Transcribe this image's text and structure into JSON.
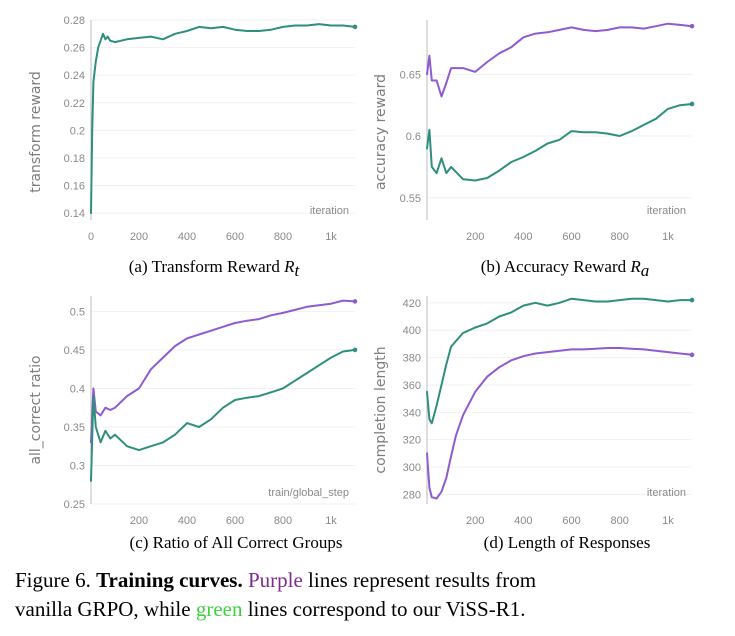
{
  "colors": {
    "purple": "#8e5bd0",
    "green": "#2e8f7f",
    "green_text": "#3fd13f",
    "purple_text": "#7d2a8f"
  },
  "chart_data": [
    {
      "id": "a",
      "type": "line",
      "caption": "(a) Transform Reward ",
      "caption_math": "R",
      "caption_sub": "t",
      "ylabel": "transform reward",
      "xlabel": "iteration",
      "xlim": [
        0,
        1100
      ],
      "ylim": [
        0.135,
        0.28
      ],
      "xticks": [
        0,
        200,
        400,
        600,
        800,
        1000
      ],
      "xtick_labels": [
        "0",
        "200",
        "400",
        "600",
        "800",
        "1k"
      ],
      "yticks": [
        0.14,
        0.16,
        0.18,
        0.2,
        0.22,
        0.24,
        0.26,
        0.28
      ],
      "ytick_labels": [
        "0.14",
        "0.16",
        "0.18",
        "0.2",
        "0.22",
        "0.24",
        "0.26",
        "0.28"
      ],
      "series": [
        {
          "name": "ViSS-R1",
          "color": "green",
          "x": [
            0,
            5,
            10,
            20,
            30,
            40,
            50,
            60,
            70,
            80,
            100,
            150,
            200,
            250,
            300,
            350,
            400,
            450,
            500,
            550,
            600,
            650,
            700,
            750,
            800,
            850,
            900,
            950,
            1000,
            1050,
            1100
          ],
          "y": [
            0.14,
            0.2,
            0.235,
            0.25,
            0.26,
            0.265,
            0.27,
            0.266,
            0.268,
            0.265,
            0.264,
            0.266,
            0.267,
            0.268,
            0.266,
            0.27,
            0.272,
            0.275,
            0.274,
            0.275,
            0.273,
            0.272,
            0.272,
            0.273,
            0.275,
            0.276,
            0.276,
            0.277,
            0.276,
            0.276,
            0.275
          ]
        }
      ]
    },
    {
      "id": "b",
      "type": "line",
      "caption": "(b) Accuracy Reward ",
      "caption_math": "R",
      "caption_sub": "a",
      "ylabel": "accuracy reward",
      "xlabel": "iteration",
      "xlim": [
        0,
        1100
      ],
      "ylim": [
        0.532,
        0.694
      ],
      "xticks": [
        200,
        400,
        600,
        800,
        1000
      ],
      "xtick_labels": [
        "200",
        "400",
        "600",
        "800",
        "1k"
      ],
      "yticks": [
        0.55,
        0.6,
        0.65
      ],
      "ytick_labels": [
        "0.55",
        "0.6",
        "0.65"
      ],
      "series": [
        {
          "name": "vanilla GRPO",
          "color": "purple",
          "x": [
            0,
            10,
            20,
            40,
            60,
            80,
            100,
            150,
            200,
            250,
            300,
            350,
            400,
            450,
            500,
            550,
            600,
            650,
            700,
            750,
            800,
            850,
            900,
            950,
            1000,
            1050,
            1100
          ],
          "y": [
            0.65,
            0.665,
            0.645,
            0.645,
            0.632,
            0.643,
            0.655,
            0.655,
            0.652,
            0.66,
            0.667,
            0.672,
            0.68,
            0.683,
            0.684,
            0.686,
            0.688,
            0.686,
            0.685,
            0.686,
            0.688,
            0.688,
            0.687,
            0.689,
            0.691,
            0.69,
            0.689
          ]
        },
        {
          "name": "ViSS-R1",
          "color": "green",
          "x": [
            0,
            10,
            20,
            40,
            60,
            80,
            100,
            150,
            200,
            250,
            300,
            350,
            400,
            450,
            500,
            550,
            600,
            650,
            700,
            750,
            800,
            850,
            900,
            950,
            1000,
            1050,
            1100
          ],
          "y": [
            0.59,
            0.605,
            0.575,
            0.57,
            0.582,
            0.57,
            0.575,
            0.565,
            0.564,
            0.566,
            0.572,
            0.579,
            0.583,
            0.588,
            0.594,
            0.597,
            0.604,
            0.603,
            0.603,
            0.602,
            0.6,
            0.604,
            0.609,
            0.614,
            0.622,
            0.625,
            0.626
          ]
        }
      ]
    },
    {
      "id": "c",
      "type": "line",
      "caption": "(c) Ratio of All Correct Groups",
      "ylabel": "all_correct ratio",
      "xlabel": "train/global_step",
      "xlim": [
        0,
        1100
      ],
      "ylim": [
        0.25,
        0.52
      ],
      "xticks": [
        200,
        400,
        600,
        800,
        1000
      ],
      "xtick_labels": [
        "200",
        "400",
        "600",
        "800",
        "1k"
      ],
      "yticks": [
        0.25,
        0.3,
        0.35,
        0.4,
        0.45,
        0.5
      ],
      "ytick_labels": [
        "0.25",
        "0.3",
        "0.35",
        "0.4",
        "0.45",
        "0.5"
      ],
      "series": [
        {
          "name": "vanilla GRPO",
          "color": "purple",
          "x": [
            0,
            10,
            20,
            40,
            60,
            80,
            100,
            150,
            200,
            250,
            300,
            350,
            400,
            450,
            500,
            550,
            600,
            650,
            700,
            750,
            800,
            850,
            900,
            950,
            1000,
            1050,
            1100
          ],
          "y": [
            0.33,
            0.4,
            0.37,
            0.365,
            0.375,
            0.372,
            0.375,
            0.39,
            0.4,
            0.425,
            0.44,
            0.455,
            0.465,
            0.47,
            0.475,
            0.48,
            0.485,
            0.488,
            0.49,
            0.495,
            0.498,
            0.502,
            0.506,
            0.508,
            0.51,
            0.514,
            0.513
          ]
        },
        {
          "name": "ViSS-R1",
          "color": "green",
          "x": [
            0,
            10,
            20,
            40,
            60,
            80,
            100,
            150,
            200,
            250,
            300,
            350,
            400,
            450,
            500,
            550,
            600,
            650,
            700,
            750,
            800,
            850,
            900,
            950,
            1000,
            1050,
            1100
          ],
          "y": [
            0.28,
            0.39,
            0.35,
            0.33,
            0.345,
            0.335,
            0.34,
            0.325,
            0.32,
            0.325,
            0.33,
            0.34,
            0.355,
            0.35,
            0.36,
            0.375,
            0.385,
            0.388,
            0.39,
            0.395,
            0.4,
            0.41,
            0.42,
            0.43,
            0.44,
            0.448,
            0.45
          ]
        }
      ]
    },
    {
      "id": "d",
      "type": "line",
      "caption": "(d) Length of Responses",
      "ylabel": "completion length",
      "xlabel": "iteration",
      "xlim": [
        0,
        1100
      ],
      "ylim": [
        273,
        425
      ],
      "xticks": [
        200,
        400,
        600,
        800,
        1000
      ],
      "xtick_labels": [
        "200",
        "400",
        "600",
        "800",
        "1k"
      ],
      "yticks": [
        280,
        300,
        320,
        340,
        360,
        380,
        400,
        420
      ],
      "ytick_labels": [
        "280",
        "300",
        "320",
        "340",
        "360",
        "380",
        "400",
        "420"
      ],
      "series": [
        {
          "name": "vanilla GRPO",
          "color": "purple",
          "x": [
            0,
            10,
            20,
            40,
            60,
            80,
            100,
            120,
            150,
            200,
            250,
            300,
            350,
            400,
            450,
            500,
            550,
            600,
            650,
            700,
            750,
            800,
            850,
            900,
            950,
            1000,
            1050,
            1100
          ],
          "y": [
            310,
            285,
            278,
            277,
            282,
            292,
            308,
            323,
            338,
            355,
            366,
            373,
            378,
            381,
            383,
            384,
            385,
            386,
            386,
            386.5,
            387,
            387,
            386.5,
            386,
            385,
            384,
            383,
            382
          ]
        },
        {
          "name": "ViSS-R1",
          "color": "green",
          "x": [
            0,
            10,
            20,
            40,
            60,
            80,
            100,
            150,
            200,
            250,
            300,
            350,
            400,
            450,
            500,
            550,
            600,
            650,
            700,
            750,
            800,
            850,
            900,
            950,
            1000,
            1050,
            1100
          ],
          "y": [
            355,
            335,
            332,
            345,
            360,
            375,
            388,
            398,
            402,
            405,
            410,
            413,
            418,
            420,
            418,
            420,
            423,
            422,
            421,
            421,
            422,
            423,
            423,
            422,
            421,
            422,
            422
          ]
        }
      ]
    }
  ],
  "figure_caption": {
    "line1_prefix": "Figure 6.  ",
    "line1_bold": "Training curves.",
    "line1_purple": "Purple",
    "line1_rest": " lines represent results from",
    "line2_prefix": "vanilla GRPO, while ",
    "line2_green": "green",
    "line2_rest": " lines correspond to our ViSS-R1."
  }
}
